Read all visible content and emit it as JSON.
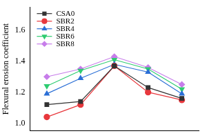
{
  "chart_data": {
    "type": "line",
    "y_label": "Flexural erosion coefficient",
    "categories": [
      null,
      null,
      null,
      null,
      null
    ],
    "series": [
      {
        "name": "CSA0",
        "color": "#333333",
        "marker": "square",
        "values": [
          1.12,
          1.14,
          1.37,
          1.23,
          1.16
        ]
      },
      {
        "name": "SBR2",
        "color": "#e8383d",
        "marker": "circle",
        "values": [
          1.04,
          1.12,
          1.37,
          1.2,
          1.15
        ]
      },
      {
        "name": "SBR4",
        "color": "#2b6fd6",
        "marker": "triangle",
        "values": [
          1.19,
          1.29,
          1.38,
          1.33,
          1.19
        ]
      },
      {
        "name": "SBR6",
        "color": "#2ecc71",
        "marker": "triangle-down",
        "values": [
          1.24,
          1.34,
          1.41,
          1.35,
          1.22
        ]
      },
      {
        "name": "SBR8",
        "color": "#c77dea",
        "marker": "diamond",
        "values": [
          1.3,
          1.35,
          1.43,
          1.36,
          1.25
        ]
      }
    ],
    "ylim": [
      0.95,
      1.75
    ],
    "yticks": [
      {
        "value": 1,
        "label": "1.0"
      },
      1.2,
      1.4,
      1.6
    ],
    "grid": false,
    "legend": "upper left",
    "tick_labels": "y"
  }
}
